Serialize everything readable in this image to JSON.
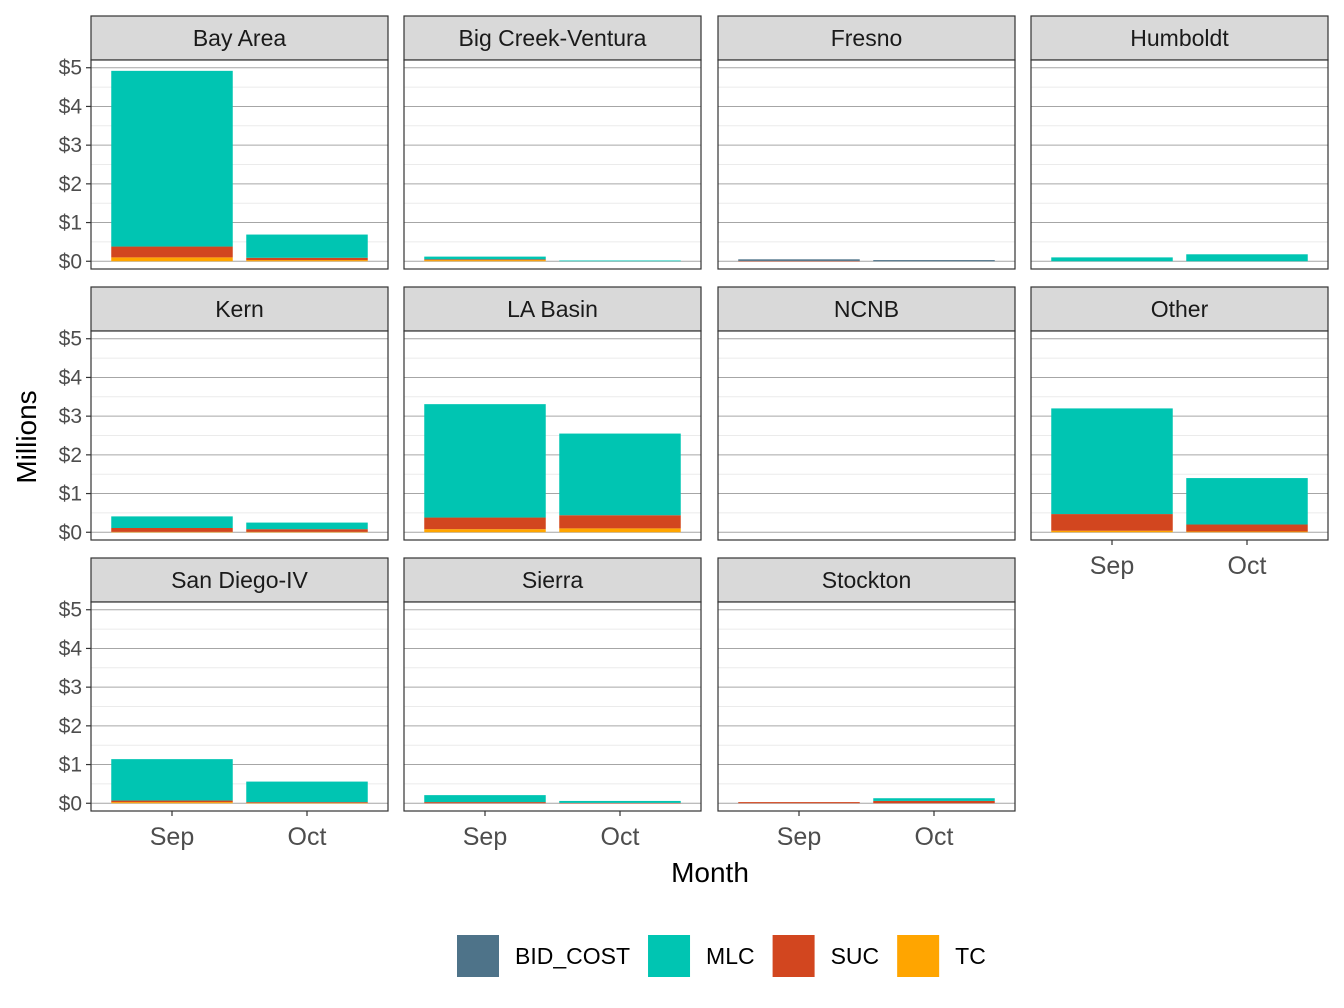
{
  "chart_data": {
    "type": "bar",
    "stacked": true,
    "xlabel": "Month",
    "ylabel": "Millions",
    "ylim": [
      -0.2,
      5.2
    ],
    "y_ticks": [
      0,
      1,
      2,
      3,
      4,
      5
    ],
    "y_tick_labels": [
      "$0",
      "$1",
      "$2",
      "$3",
      "$4",
      "$5"
    ],
    "categories": [
      "Sep",
      "Oct"
    ],
    "grid": true,
    "legend_position": "bottom",
    "series": [
      {
        "name": "BID_COST",
        "color": "#4e7389"
      },
      {
        "name": "MLC",
        "color": "#00c5b2"
      },
      {
        "name": "SUC",
        "color": "#d2461f"
      },
      {
        "name": "TC",
        "color": "#ffa500"
      }
    ],
    "facets": [
      {
        "label": "Bay Area",
        "values": {
          "BID_COST": [
            0,
            0
          ],
          "MLC": [
            4.54,
            0.6
          ],
          "SUC": [
            0.28,
            0.06
          ],
          "TC": [
            0.1,
            0.03
          ]
        }
      },
      {
        "label": "Big Creek-Ventura",
        "values": {
          "BID_COST": [
            0,
            0
          ],
          "MLC": [
            0.07,
            0.02
          ],
          "SUC": [
            0.02,
            0
          ],
          "TC": [
            0.03,
            0
          ]
        }
      },
      {
        "label": "Fresno",
        "values": {
          "BID_COST": [
            0.04,
            0.03
          ],
          "MLC": [
            0,
            0
          ],
          "SUC": [
            0.01,
            0
          ],
          "TC": [
            0,
            0
          ]
        }
      },
      {
        "label": "Humboldt",
        "values": {
          "BID_COST": [
            0,
            0
          ],
          "MLC": [
            0.1,
            0.18
          ],
          "SUC": [
            0,
            0
          ],
          "TC": [
            0,
            0
          ]
        }
      },
      {
        "label": "Kern",
        "values": {
          "BID_COST": [
            0,
            0
          ],
          "MLC": [
            0.3,
            0.17
          ],
          "SUC": [
            0.1,
            0.07
          ],
          "TC": [
            0.01,
            0.01
          ]
        }
      },
      {
        "label": "LA Basin",
        "values": {
          "BID_COST": [
            0,
            0
          ],
          "MLC": [
            2.93,
            2.11
          ],
          "SUC": [
            0.3,
            0.34
          ],
          "TC": [
            0.08,
            0.1
          ]
        }
      },
      {
        "label": "NCNB",
        "values": {
          "BID_COST": [
            0,
            0
          ],
          "MLC": [
            0,
            0
          ],
          "SUC": [
            0,
            0
          ],
          "TC": [
            0,
            0
          ]
        }
      },
      {
        "label": "Other",
        "values": {
          "BID_COST": [
            0,
            0
          ],
          "MLC": [
            2.73,
            1.2
          ],
          "SUC": [
            0.43,
            0.18
          ],
          "TC": [
            0.04,
            0.02
          ]
        }
      },
      {
        "label": "San Diego-IV",
        "values": {
          "BID_COST": [
            0,
            0
          ],
          "MLC": [
            1.07,
            0.53
          ],
          "SUC": [
            0.04,
            0.02
          ],
          "TC": [
            0.03,
            0.01
          ]
        }
      },
      {
        "label": "Sierra",
        "values": {
          "BID_COST": [
            0,
            0
          ],
          "MLC": [
            0.18,
            0.05
          ],
          "SUC": [
            0.03,
            0.01
          ],
          "TC": [
            0,
            0
          ]
        }
      },
      {
        "label": "Stockton",
        "values": {
          "BID_COST": [
            0,
            0
          ],
          "MLC": [
            0,
            0.07
          ],
          "SUC": [
            0.03,
            0.06
          ],
          "TC": [
            0,
            0
          ]
        }
      }
    ]
  }
}
